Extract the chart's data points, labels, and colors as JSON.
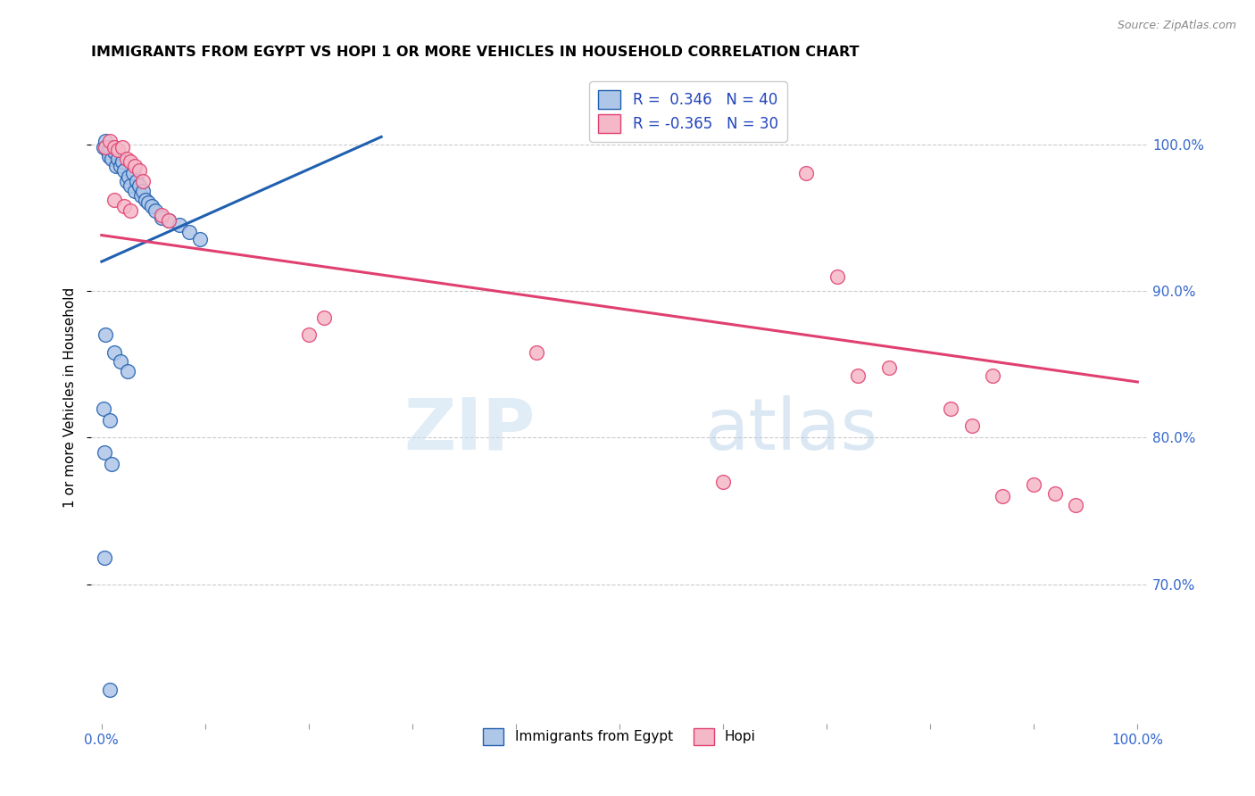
{
  "title": "IMMIGRANTS FROM EGYPT VS HOPI 1 OR MORE VEHICLES IN HOUSEHOLD CORRELATION CHART",
  "source": "Source: ZipAtlas.com",
  "ylabel": "1 or more Vehicles in Household",
  "legend_label1": "Immigrants from Egypt",
  "legend_label2": "Hopi",
  "r1": 0.346,
  "n1": 40,
  "r2": -0.365,
  "n2": 30,
  "xlim": [
    -0.01,
    1.01
  ],
  "ylim": [
    0.605,
    1.05
  ],
  "ytick_values": [
    0.7,
    0.8,
    0.9,
    1.0
  ],
  "ytick_labels": [
    "70.0%",
    "80.0%",
    "90.0%",
    "100.0%"
  ],
  "xtick_positions": [
    0.0,
    0.1,
    0.2,
    0.3,
    0.4,
    0.5,
    0.6,
    0.7,
    0.8,
    0.9,
    1.0
  ],
  "xtick_labels": [
    "0.0%",
    "",
    "",
    "",
    "",
    "",
    "",
    "",
    "",
    "",
    "100.0%"
  ],
  "color_blue": "#aec6e8",
  "color_pink": "#f5b8c8",
  "line_color_blue": "#2060b0",
  "line_color_pink": "#e04070",
  "watermark_zip": "ZIP",
  "watermark_atlas": "atlas",
  "blue_line_x0": 0.0,
  "blue_line_y0": 0.92,
  "blue_line_x1": 0.27,
  "blue_line_y1": 1.005,
  "pink_line_x0": 0.0,
  "pink_line_y0": 0.938,
  "pink_line_x1": 1.0,
  "pink_line_y1": 0.838,
  "blue_points": [
    [
      0.002,
      0.998
    ],
    [
      0.004,
      1.002
    ],
    [
      0.006,
      0.995
    ],
    [
      0.007,
      0.992
    ],
    [
      0.008,
      0.998
    ],
    [
      0.01,
      0.99
    ],
    [
      0.012,
      0.995
    ],
    [
      0.014,
      0.985
    ],
    [
      0.016,
      0.99
    ],
    [
      0.018,
      0.985
    ],
    [
      0.02,
      0.988
    ],
    [
      0.022,
      0.982
    ],
    [
      0.024,
      0.975
    ],
    [
      0.026,
      0.978
    ],
    [
      0.028,
      0.972
    ],
    [
      0.03,
      0.98
    ],
    [
      0.032,
      0.968
    ],
    [
      0.034,
      0.975
    ],
    [
      0.036,
      0.972
    ],
    [
      0.038,
      0.965
    ],
    [
      0.04,
      0.968
    ],
    [
      0.042,
      0.962
    ],
    [
      0.045,
      0.96
    ],
    [
      0.048,
      0.958
    ],
    [
      0.052,
      0.955
    ],
    [
      0.058,
      0.95
    ],
    [
      0.065,
      0.948
    ],
    [
      0.075,
      0.945
    ],
    [
      0.085,
      0.94
    ],
    [
      0.095,
      0.935
    ],
    [
      0.004,
      0.87
    ],
    [
      0.012,
      0.858
    ],
    [
      0.018,
      0.852
    ],
    [
      0.025,
      0.845
    ],
    [
      0.002,
      0.82
    ],
    [
      0.008,
      0.812
    ],
    [
      0.003,
      0.79
    ],
    [
      0.01,
      0.782
    ],
    [
      0.003,
      0.718
    ],
    [
      0.008,
      0.628
    ]
  ],
  "pink_points": [
    [
      0.004,
      0.998
    ],
    [
      0.008,
      1.002
    ],
    [
      0.012,
      0.998
    ],
    [
      0.016,
      0.996
    ],
    [
      0.02,
      0.998
    ],
    [
      0.024,
      0.99
    ],
    [
      0.028,
      0.988
    ],
    [
      0.032,
      0.985
    ],
    [
      0.036,
      0.982
    ],
    [
      0.04,
      0.975
    ],
    [
      0.012,
      0.962
    ],
    [
      0.022,
      0.958
    ],
    [
      0.028,
      0.955
    ],
    [
      0.058,
      0.952
    ],
    [
      0.065,
      0.948
    ],
    [
      0.2,
      0.87
    ],
    [
      0.215,
      0.882
    ],
    [
      0.42,
      0.858
    ],
    [
      0.6,
      0.77
    ],
    [
      0.68,
      0.98
    ],
    [
      0.71,
      0.91
    ],
    [
      0.73,
      0.842
    ],
    [
      0.76,
      0.848
    ],
    [
      0.82,
      0.82
    ],
    [
      0.84,
      0.808
    ],
    [
      0.86,
      0.842
    ],
    [
      0.87,
      0.76
    ],
    [
      0.9,
      0.768
    ],
    [
      0.92,
      0.762
    ],
    [
      0.94,
      0.754
    ]
  ]
}
